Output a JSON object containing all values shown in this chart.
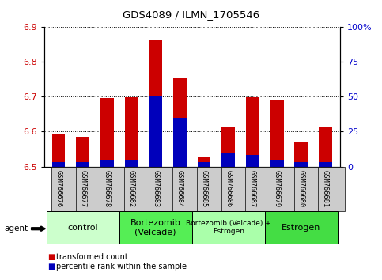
{
  "title": "GDS4089 / ILMN_1705546",
  "samples": [
    "GSM766676",
    "GSM766677",
    "GSM766678",
    "GSM766682",
    "GSM766683",
    "GSM766684",
    "GSM766685",
    "GSM766686",
    "GSM766687",
    "GSM766679",
    "GSM766680",
    "GSM766681"
  ],
  "transformed_count": [
    6.594,
    6.586,
    6.695,
    6.697,
    6.862,
    6.754,
    6.527,
    6.612,
    6.698,
    6.688,
    6.571,
    6.614
  ],
  "percentile_rank": [
    3,
    3,
    5,
    5,
    50,
    35,
    3,
    10,
    8,
    5,
    3,
    3
  ],
  "base": 6.5,
  "ylim_left": [
    6.5,
    6.9
  ],
  "ylim_right": [
    0,
    100
  ],
  "yticks_left": [
    6.5,
    6.6,
    6.7,
    6.8,
    6.9
  ],
  "yticks_right": [
    0,
    25,
    50,
    75,
    100
  ],
  "ytick_labels_right": [
    "0",
    "25",
    "50",
    "75",
    "100%"
  ],
  "groups": [
    {
      "label": "control",
      "start": 0,
      "end": 3,
      "color": "#ccffcc",
      "fontsize": 8
    },
    {
      "label": "Bortezomib\n(Velcade)",
      "start": 3,
      "end": 6,
      "color": "#55ee55",
      "fontsize": 8
    },
    {
      "label": "Bortezomib (Velcade) +\nEstrogen",
      "start": 6,
      "end": 9,
      "color": "#aaffaa",
      "fontsize": 6.5
    },
    {
      "label": "Estrogen",
      "start": 9,
      "end": 12,
      "color": "#44dd44",
      "fontsize": 8
    }
  ],
  "bar_width": 0.55,
  "red_color": "#cc0000",
  "blue_color": "#0000bb",
  "agent_label": "agent",
  "legend_red": "transformed count",
  "legend_blue": "percentile rank within the sample",
  "background_color": "#ffffff",
  "plot_bg": "#ffffff",
  "tick_label_color_left": "#cc0000",
  "tick_label_color_right": "#0000cc",
  "grid_color": "#000000",
  "xticklabel_bg": "#cccccc"
}
